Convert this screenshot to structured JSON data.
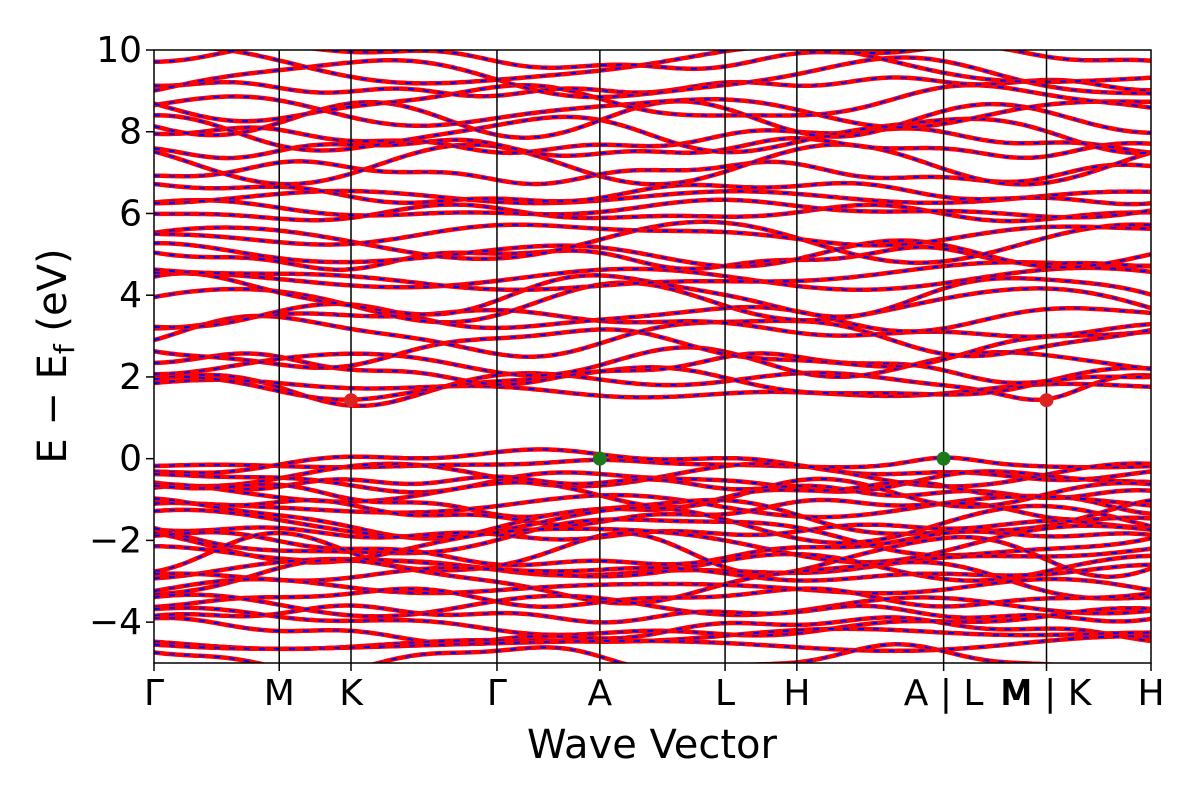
{
  "chart_data": {
    "type": "line",
    "title": "",
    "xlabel": "Wave Vector",
    "ylabel_main": "E − E",
    "ylabel_sub": "f",
    "ylabel_unit": " (eV)",
    "ylim": [
      -5,
      10
    ],
    "y_ticks": [
      -4,
      -2,
      0,
      2,
      4,
      6,
      8,
      10
    ],
    "y_tick_labels": [
      "−4",
      "−2",
      "0",
      "2",
      "4",
      "6",
      "8",
      "10"
    ],
    "x_range": [
      0,
      12.5
    ],
    "kpoints": [
      {
        "label": "Γ",
        "x": 0
      },
      {
        "label": "M",
        "x": 1.57
      },
      {
        "label": "K",
        "x": 2.47
      },
      {
        "label": "Γ",
        "x": 4.3
      },
      {
        "label": "A",
        "x": 5.59
      },
      {
        "label": "L",
        "x": 7.16
      },
      {
        "label": "H",
        "x": 8.06
      },
      {
        "label": "A | L",
        "x": 9.9
      },
      {
        "label": "M | K",
        "x": 11.19
      },
      {
        "label": "H",
        "x": 12.5
      }
    ],
    "M_label_at_LM": {
      "label": "M",
      "x": 10.8
    },
    "vertical_lines": [
      1.57,
      2.47,
      4.3,
      5.59,
      7.16,
      8.06,
      9.9,
      11.19
    ],
    "series": [
      {
        "style": "red-solid",
        "color": "#ff0000"
      },
      {
        "style": "blue-dashed",
        "color": "#0000ff"
      }
    ],
    "band_extrema": [
      {
        "kind": "CBM",
        "x": 2.47,
        "y": 1.43,
        "color": "#dd2222"
      },
      {
        "kind": "CBM",
        "x": 11.19,
        "y": 1.43,
        "color": "#dd2222"
      },
      {
        "kind": "VBM",
        "x": 5.59,
        "y": 0.0,
        "color": "#1a7a1a"
      },
      {
        "kind": "VBM",
        "x": 9.9,
        "y": 0.0,
        "color": "#1a7a1a"
      }
    ],
    "conduction_band_levels": [
      1.45,
      1.7,
      1.85,
      2.2,
      2.35,
      2.7,
      3.0,
      3.3,
      3.45,
      3.8,
      4.0,
      4.4,
      4.5,
      4.9,
      5.0,
      5.3,
      5.5,
      6.0,
      6.1,
      6.4,
      6.5,
      7.0,
      7.2,
      7.6,
      7.8,
      7.95,
      8.3,
      8.5,
      8.7,
      9.1,
      9.3,
      9.6,
      9.8
    ],
    "valence_band_levels": [
      -0.05,
      -0.15,
      -0.4,
      -0.55,
      -0.7,
      -0.85,
      -1.0,
      -1.15,
      -1.3,
      -1.45,
      -1.6,
      -1.75,
      -1.9,
      -2.05,
      -2.2,
      -2.35,
      -2.5,
      -2.65,
      -2.8,
      -3.0,
      -3.15,
      -3.4,
      -3.6,
      -3.8,
      -4.0,
      -4.2,
      -4.4,
      -4.55,
      -4.9
    ]
  }
}
